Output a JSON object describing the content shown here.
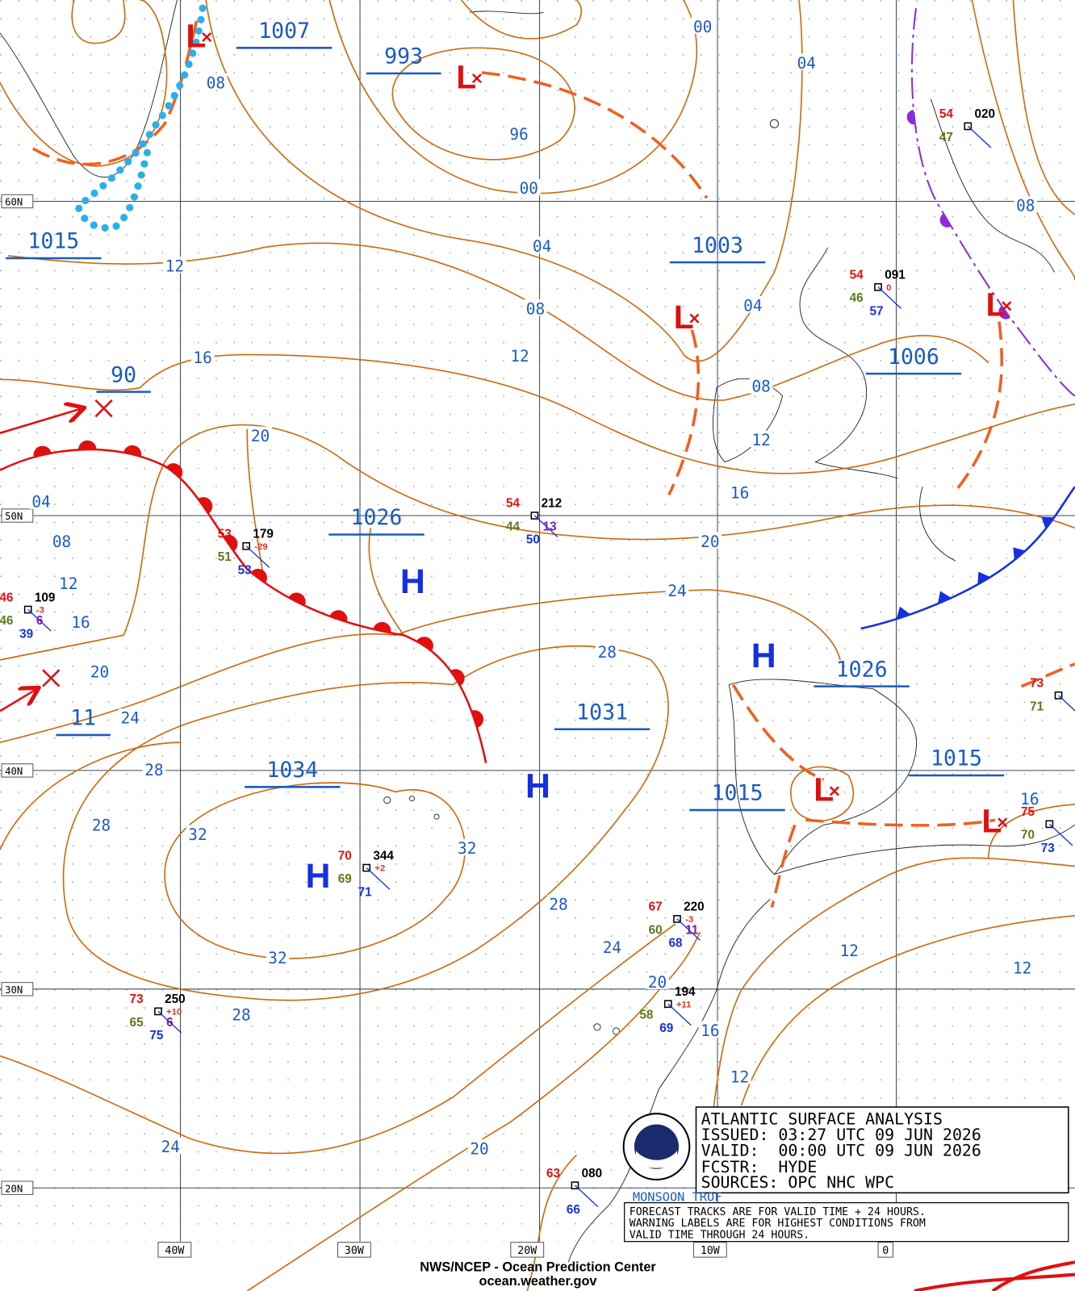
{
  "lat_labels": [
    "60N",
    "50N",
    "40N",
    "30N",
    "20N"
  ],
  "lon_labels": [
    "40W",
    "30W",
    "20W",
    "10W",
    "0"
  ],
  "isobar_labels": [
    "08",
    "96",
    "00",
    "00",
    "04",
    "12",
    "04",
    "08",
    "12",
    "04",
    "16",
    "20",
    "08",
    "12",
    "16",
    "08",
    "04",
    "08",
    "12",
    "16",
    "20",
    "24",
    "28",
    "28",
    "32",
    "32",
    "32",
    "28",
    "28",
    "24",
    "20",
    "24",
    "28",
    "20",
    "16",
    "12",
    "12",
    "12",
    "16",
    "24",
    "20"
  ],
  "center_pressures": [
    "1007",
    "993",
    "1015",
    "1003",
    "1006",
    "90",
    "1026",
    "11",
    "1031",
    "1034",
    "1026",
    "1015",
    "1015",
    "1015"
  ],
  "highs": [
    "H",
    "H",
    "H",
    "H"
  ],
  "lows": [
    "L",
    "L",
    "L",
    "L",
    "L",
    "L"
  ],
  "stations": [
    {
      "temperature": "54",
      "pressure": "020",
      "dew_point": "47"
    },
    {
      "temperature": "54",
      "pressure": "091",
      "dew_point": "46",
      "sea_temp": "57",
      "tendency": "0"
    },
    {
      "temperature": "54",
      "pressure": "212",
      "dew_point": "44",
      "sea_temp": "50",
      "wave_height": "13"
    },
    {
      "temperature": "53",
      "pressure": "179",
      "dew_point": "51",
      "sea_temp": "53",
      "tendency": "-29"
    },
    {
      "temperature": "46",
      "pressure": "109",
      "dew_point": "46",
      "sea_temp": "39",
      "wave_height": "6",
      "tendency": "-3"
    },
    {
      "temperature": "70",
      "pressure": "344",
      "dew_point": "69",
      "sea_temp": "71",
      "tendency": "+2"
    },
    {
      "temperature": "67",
      "pressure": "220",
      "dew_point": "60",
      "sea_temp": "68",
      "wave_height": "11",
      "tendency": "-3"
    },
    {
      "pressure": "194",
      "dew_point": "58",
      "sea_temp": "69",
      "tendency": "+11"
    },
    {
      "temperature": "73",
      "pressure": "250",
      "dew_point": "65",
      "sea_temp": "75",
      "wave_height": "6",
      "tendency": "+10"
    },
    {
      "temperature": "63",
      "pressure": "080",
      "sea_temp": "66"
    },
    {
      "temperature": "75",
      "dew_point": "70",
      "sea_temp": "73"
    },
    {
      "temperature": "73",
      "dew_point": "71"
    }
  ],
  "info_box": {
    "title": "ATLANTIC SURFACE ANALYSIS",
    "issued": "ISSUED: 03:27 UTC 09 JUN 2026",
    "valid": "VALID:  00:00 UTC 09 JUN 2026",
    "forecaster": "FCSTR:  HYDE",
    "sources": "SOURCES: OPC NHC WPC"
  },
  "monsoon_label": "MONSOON TROF",
  "notes": [
    "FORECAST TRACKS ARE FOR VALID TIME + 24 HOURS.",
    "WARNING LABELS ARE FOR HIGHEST CONDITIONS FROM",
    "VALID TIME THROUGH 24 HOURS."
  ],
  "footer": {
    "agency": "NWS/NCEP - Ocean Prediction Center",
    "url": "ocean.weather.gov"
  }
}
